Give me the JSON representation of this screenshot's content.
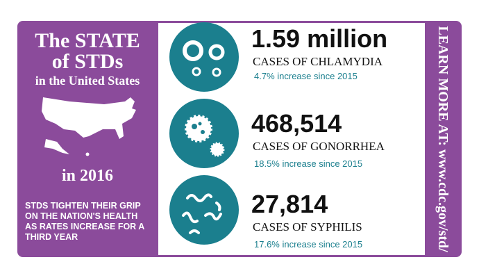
{
  "sidebar": {
    "title_lines": [
      "The STATE",
      "of STDs"
    ],
    "subtitle": "in the United States",
    "year": "in 2016",
    "note_lines": [
      "STDS TIGHTEN THEIR GRIP",
      "ON THE NATION'S HEALTH",
      "AS RATES INCREASE FOR A",
      "THIRD YEAR"
    ]
  },
  "stats": [
    {
      "figure": "1.59 million",
      "label": "CASES OF CHLAMYDIA",
      "change": "4.7% increase since 2015"
    },
    {
      "figure": "468,514",
      "label": "CASES OF GONORRHEA",
      "change": "18.5% increase since 2015"
    },
    {
      "figure": "27,814",
      "label": "CASES OF SYPHILIS",
      "change": "17.6% increase since 2015"
    }
  ],
  "link": "LEARN MORE AT: www.cdc.gov/std/"
}
